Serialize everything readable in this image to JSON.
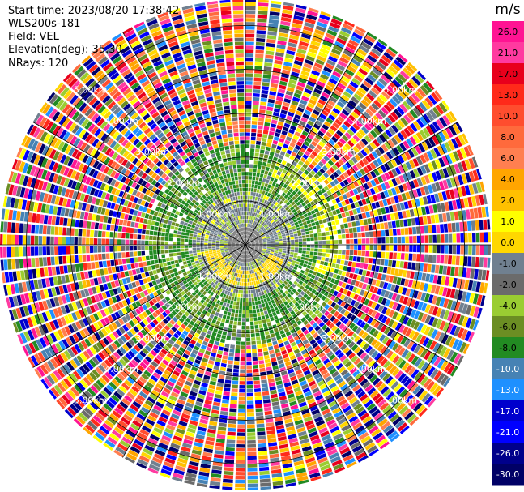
{
  "header": {
    "start_time": "Start time: 2023/08/20 17:38:42",
    "instrument": "WLS200s-181",
    "field": "Field: VEL",
    "elevation": "Elevation(deg): 35.30",
    "nrays": "NRays: 120"
  },
  "chart_data": {
    "type": "heatmap",
    "projection": "polar PPI",
    "nrays": 120,
    "range_rings": [
      {
        "label": "1.00km",
        "km": 1
      },
      {
        "label": "2.00km",
        "km": 2
      },
      {
        "label": "3.00km",
        "km": 3
      },
      {
        "label": "4.00km",
        "km": 4
      },
      {
        "label": "5.00km",
        "km": 5
      }
    ],
    "max_range_km": 5.6,
    "colorbar": {
      "unit": "m/s",
      "ticks": [
        "26.0",
        "21.0",
        "17.0",
        "13.0",
        "10.0",
        "8.0",
        "6.0",
        "4.0",
        "2.0",
        "1.0",
        "0.0",
        "-1.0",
        "-2.0",
        "-4.0",
        "-6.0",
        "-8.0",
        "-10.0",
        "-13.0",
        "-17.0",
        "-21.0",
        "-26.0",
        "-30.0"
      ],
      "bins": [
        {
          "min": 26,
          "max": 30,
          "color": "#ff1493"
        },
        {
          "min": 21,
          "max": 26,
          "color": "#ff3aa0"
        },
        {
          "min": 17,
          "max": 21,
          "color": "#e8001c"
        },
        {
          "min": 13,
          "max": 17,
          "color": "#ff2a1a"
        },
        {
          "min": 10,
          "max": 13,
          "color": "#ff4d2e"
        },
        {
          "min": 8,
          "max": 10,
          "color": "#ff6a3c"
        },
        {
          "min": 6,
          "max": 8,
          "color": "#ff7f50"
        },
        {
          "min": 4,
          "max": 6,
          "color": "#ffa500"
        },
        {
          "min": 2,
          "max": 4,
          "color": "#ffc000"
        },
        {
          "min": 1,
          "max": 2,
          "color": "#ffff00"
        },
        {
          "min": 0,
          "max": 1,
          "color": "#ffd700"
        },
        {
          "min": -1,
          "max": 0,
          "color": "#708090"
        },
        {
          "min": -2,
          "max": -1,
          "color": "#6b6b6b"
        },
        {
          "min": -4,
          "max": -2,
          "color": "#9acd32"
        },
        {
          "min": -6,
          "max": -4,
          "color": "#6b8e23"
        },
        {
          "min": -8,
          "max": -6,
          "color": "#228b22"
        },
        {
          "min": -10,
          "max": -8,
          "color": "#4682b4"
        },
        {
          "min": -13,
          "max": -10,
          "color": "#1e90ff"
        },
        {
          "min": -17,
          "max": -13,
          "color": "#0000cd"
        },
        {
          "min": -21,
          "max": -17,
          "color": "#0000ff"
        },
        {
          "min": -26,
          "max": -21,
          "color": "#00008b"
        },
        {
          "min": -30,
          "max": -26,
          "color": "#000066"
        }
      ]
    },
    "description_of_pattern": [
      "inner ~1.2km: gray core with yellow/green band",
      "1.2-2.3km: mostly green",
      "beyond 2.3km: noisy multicolor"
    ]
  }
}
